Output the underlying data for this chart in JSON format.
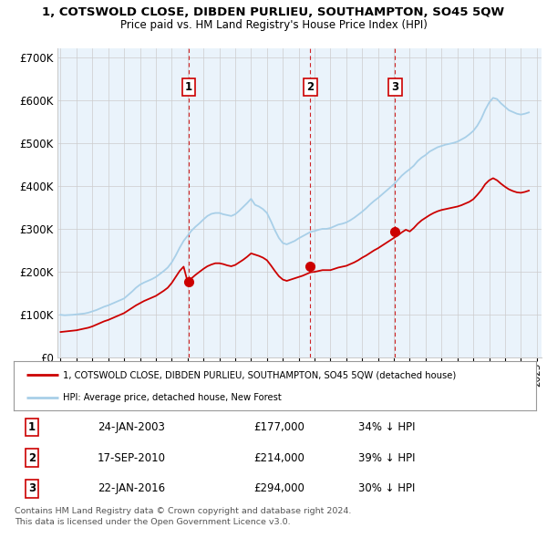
{
  "title": "1, COTSWOLD CLOSE, DIBDEN PURLIEU, SOUTHAMPTON, SO45 5QW",
  "subtitle": "Price paid vs. HM Land Registry's House Price Index (HPI)",
  "ylabel_ticks": [
    "£0",
    "£100K",
    "£200K",
    "£300K",
    "£400K",
    "£500K",
    "£600K",
    "£700K"
  ],
  "ytick_values": [
    0,
    100000,
    200000,
    300000,
    400000,
    500000,
    600000,
    700000
  ],
  "ylim": [
    0,
    720000
  ],
  "xlim_start": 1994.8,
  "xlim_end": 2025.3,
  "hpi_color": "#a8cfe8",
  "price_color": "#cc0000",
  "purchase_marker_color": "#cc0000",
  "vline_color": "#cc0000",
  "grid_color": "#cccccc",
  "background_color": "#eaf3fb",
  "legend_label_red": "1, COTSWOLD CLOSE, DIBDEN PURLIEU, SOUTHAMPTON, SO45 5QW (detached house)",
  "legend_label_blue": "HPI: Average price, detached house, New Forest",
  "purchase_dates": [
    2003.07,
    2010.72,
    2016.07
  ],
  "purchase_prices": [
    177000,
    214000,
    294000
  ],
  "purchase_labels": [
    "1",
    "2",
    "3"
  ],
  "purchase_date_strs": [
    "24-JAN-2003",
    "17-SEP-2010",
    "22-JAN-2016"
  ],
  "purchase_price_strs": [
    "£177,000",
    "£214,000",
    "£294,000"
  ],
  "purchase_pct_strs": [
    "34% ↓ HPI",
    "39% ↓ HPI",
    "30% ↓ HPI"
  ],
  "footer": "Contains HM Land Registry data © Crown copyright and database right 2024.\nThis data is licensed under the Open Government Licence v3.0.",
  "hpi_data": {
    "years": [
      1995.0,
      1995.25,
      1995.5,
      1995.75,
      1996.0,
      1996.25,
      1996.5,
      1996.75,
      1997.0,
      1997.25,
      1997.5,
      1997.75,
      1998.0,
      1998.25,
      1998.5,
      1998.75,
      1999.0,
      1999.25,
      1999.5,
      1999.75,
      2000.0,
      2000.25,
      2000.5,
      2000.75,
      2001.0,
      2001.25,
      2001.5,
      2001.75,
      2002.0,
      2002.25,
      2002.5,
      2002.75,
      2003.0,
      2003.25,
      2003.5,
      2003.75,
      2004.0,
      2004.25,
      2004.5,
      2004.75,
      2005.0,
      2005.25,
      2005.5,
      2005.75,
      2006.0,
      2006.25,
      2006.5,
      2006.75,
      2007.0,
      2007.25,
      2007.5,
      2007.75,
      2008.0,
      2008.25,
      2008.5,
      2008.75,
      2009.0,
      2009.25,
      2009.5,
      2009.75,
      2010.0,
      2010.25,
      2010.5,
      2010.75,
      2011.0,
      2011.25,
      2011.5,
      2011.75,
      2012.0,
      2012.25,
      2012.5,
      2012.75,
      2013.0,
      2013.25,
      2013.5,
      2013.75,
      2014.0,
      2014.25,
      2014.5,
      2014.75,
      2015.0,
      2015.25,
      2015.5,
      2015.75,
      2016.0,
      2016.25,
      2016.5,
      2016.75,
      2017.0,
      2017.25,
      2017.5,
      2017.75,
      2018.0,
      2018.25,
      2018.5,
      2018.75,
      2019.0,
      2019.25,
      2019.5,
      2019.75,
      2020.0,
      2020.25,
      2020.5,
      2020.75,
      2021.0,
      2021.25,
      2021.5,
      2021.75,
      2022.0,
      2022.25,
      2022.5,
      2022.75,
      2023.0,
      2023.25,
      2023.5,
      2023.75,
      2024.0,
      2024.25,
      2024.5
    ],
    "values": [
      100000,
      99000,
      99500,
      100000,
      101000,
      102000,
      103000,
      105000,
      108000,
      111000,
      115000,
      119000,
      122000,
      126000,
      130000,
      134000,
      138000,
      146000,
      154000,
      163000,
      170000,
      175000,
      179000,
      183000,
      188000,
      195000,
      202000,
      210000,
      222000,
      238000,
      256000,
      272000,
      284000,
      296000,
      305000,
      313000,
      322000,
      330000,
      335000,
      337000,
      337000,
      334000,
      332000,
      330000,
      334000,
      342000,
      351000,
      360000,
      370000,
      356000,
      352000,
      346000,
      337000,
      318000,
      297000,
      279000,
      267000,
      264000,
      268000,
      272000,
      278000,
      283000,
      288000,
      293000,
      295000,
      298000,
      300000,
      300000,
      302000,
      306000,
      310000,
      312000,
      315000,
      320000,
      326000,
      333000,
      340000,
      348000,
      357000,
      365000,
      372000,
      380000,
      388000,
      396000,
      404000,
      414000,
      424000,
      432000,
      439000,
      447000,
      458000,
      466000,
      472000,
      480000,
      485000,
      490000,
      493000,
      496000,
      498000,
      500000,
      503000,
      508000,
      513000,
      520000,
      528000,
      540000,
      556000,
      577000,
      594000,
      605000,
      602000,
      592000,
      584000,
      576000,
      572000,
      568000,
      566000,
      568000,
      571000
    ]
  },
  "red_data": {
    "years": [
      1995.0,
      1995.25,
      1995.5,
      1995.75,
      1996.0,
      1996.25,
      1996.5,
      1996.75,
      1997.0,
      1997.25,
      1997.5,
      1997.75,
      1998.0,
      1998.25,
      1998.5,
      1998.75,
      1999.0,
      1999.25,
      1999.5,
      1999.75,
      2000.0,
      2000.25,
      2000.5,
      2000.75,
      2001.0,
      2001.25,
      2001.5,
      2001.75,
      2002.0,
      2002.25,
      2002.5,
      2002.75,
      2003.0,
      2003.25,
      2003.5,
      2003.75,
      2004.0,
      2004.25,
      2004.5,
      2004.75,
      2005.0,
      2005.25,
      2005.5,
      2005.75,
      2006.0,
      2006.25,
      2006.5,
      2006.75,
      2007.0,
      2007.25,
      2007.5,
      2007.75,
      2008.0,
      2008.25,
      2008.5,
      2008.75,
      2009.0,
      2009.25,
      2009.5,
      2009.75,
      2010.0,
      2010.25,
      2010.5,
      2010.75,
      2011.0,
      2011.25,
      2011.5,
      2011.75,
      2012.0,
      2012.25,
      2012.5,
      2012.75,
      2013.0,
      2013.25,
      2013.5,
      2013.75,
      2014.0,
      2014.25,
      2014.5,
      2014.75,
      2015.0,
      2015.25,
      2015.5,
      2015.75,
      2016.0,
      2016.25,
      2016.5,
      2016.75,
      2017.0,
      2017.25,
      2017.5,
      2017.75,
      2018.0,
      2018.25,
      2018.5,
      2018.75,
      2019.0,
      2019.25,
      2019.5,
      2019.75,
      2020.0,
      2020.25,
      2020.5,
      2020.75,
      2021.0,
      2021.25,
      2021.5,
      2021.75,
      2022.0,
      2022.25,
      2022.5,
      2022.75,
      2023.0,
      2023.25,
      2023.5,
      2023.75,
      2024.0,
      2024.25,
      2024.5
    ],
    "values": [
      60000,
      61000,
      62000,
      63000,
      64000,
      66000,
      68000,
      70000,
      73000,
      77000,
      81000,
      85000,
      88000,
      92000,
      96000,
      100000,
      104000,
      110000,
      116000,
      122000,
      127000,
      132000,
      136000,
      140000,
      144000,
      150000,
      156000,
      163000,
      174000,
      188000,
      202000,
      212000,
      177000,
      185000,
      193000,
      200000,
      207000,
      213000,
      217000,
      220000,
      220000,
      218000,
      215000,
      213000,
      216000,
      222000,
      228000,
      235000,
      243000,
      240000,
      237000,
      233000,
      227000,
      215000,
      202000,
      190000,
      182000,
      179000,
      182000,
      185000,
      188000,
      191000,
      195000,
      199000,
      200000,
      202000,
      204000,
      204000,
      204000,
      207000,
      210000,
      212000,
      214000,
      218000,
      222000,
      227000,
      233000,
      238000,
      244000,
      250000,
      255000,
      261000,
      267000,
      273000,
      279000,
      285000,
      292000,
      298000,
      294000,
      302000,
      312000,
      320000,
      326000,
      332000,
      337000,
      341000,
      344000,
      346000,
      348000,
      350000,
      352000,
      355000,
      359000,
      363000,
      369000,
      379000,
      390000,
      404000,
      413000,
      418000,
      413000,
      405000,
      398000,
      392000,
      388000,
      385000,
      384000,
      386000,
      389000
    ]
  }
}
